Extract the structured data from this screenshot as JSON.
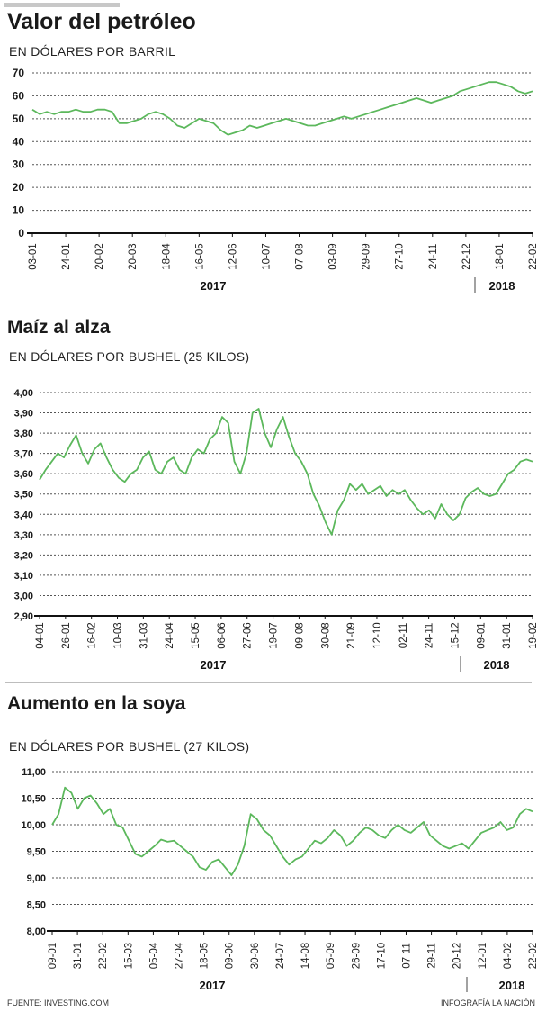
{
  "footer": {
    "source": "FUENTE: INVESTING.COM",
    "credit": "INFOGRAFÍA LA NACIÓN"
  },
  "accent_color": "#5cb85c",
  "chart_data": [
    {
      "type": "line",
      "title": "Valor del petróleo",
      "subtitle": "EN DÓLARES POR BARRIL",
      "ylim": [
        0,
        70
      ],
      "yticks": [
        "0",
        "10",
        "20",
        "30",
        "40",
        "50",
        "60",
        "70"
      ],
      "yticks_values": [
        0,
        10,
        20,
        30,
        40,
        50,
        60,
        70
      ],
      "grid": true,
      "x_labels": [
        "03-01",
        "24-01",
        "20-02",
        "20-03",
        "18-04",
        "16-05",
        "12-06",
        "10-07",
        "07-08",
        "03-09",
        "29-09",
        "27-10",
        "24-11",
        "22-12",
        "18-01",
        "22-02"
      ],
      "year_labels": [
        "2017",
        "2018"
      ],
      "series": [
        {
          "values": [
            54,
            52,
            53,
            52,
            53,
            53,
            54,
            53,
            53,
            54,
            54,
            53,
            48,
            48,
            49,
            50,
            52,
            53,
            52,
            50,
            47,
            46,
            48,
            50,
            49,
            48,
            45,
            43,
            44,
            45,
            47,
            46,
            47,
            48,
            49,
            50,
            49,
            48,
            47,
            47,
            48,
            49,
            50,
            51,
            50,
            51,
            52,
            53,
            54,
            55,
            56,
            57,
            58,
            59,
            58,
            57,
            58,
            59,
            60,
            62,
            63,
            64,
            65,
            66,
            66,
            65,
            64,
            62,
            61,
            62
          ]
        }
      ]
    },
    {
      "type": "line",
      "title": "Maíz al alza",
      "subtitle": "EN DÓLARES POR BUSHEL (25 KILOS)",
      "ylim": [
        2.9,
        4.0
      ],
      "yticks": [
        "2,90",
        "3,00",
        "3,10",
        "3,20",
        "3,30",
        "3,40",
        "3,50",
        "3,60",
        "3,70",
        "3,80",
        "3,90",
        "4,00"
      ],
      "yticks_values": [
        2.9,
        3.0,
        3.1,
        3.2,
        3.3,
        3.4,
        3.5,
        3.6,
        3.7,
        3.8,
        3.9,
        4.0
      ],
      "grid": true,
      "x_labels": [
        "04-01",
        "26-01",
        "16-02",
        "10-03",
        "31-03",
        "24-04",
        "15-05",
        "06-06",
        "27-06",
        "19-07",
        "09-08",
        "30-08",
        "21-09",
        "12-10",
        "02-11",
        "24-11",
        "15-12",
        "09-01",
        "31-01",
        "19-02"
      ],
      "year_labels": [
        "2017",
        "2018"
      ],
      "series": [
        {
          "values": [
            3.57,
            3.62,
            3.66,
            3.7,
            3.68,
            3.74,
            3.79,
            3.7,
            3.65,
            3.72,
            3.75,
            3.68,
            3.62,
            3.58,
            3.56,
            3.6,
            3.62,
            3.68,
            3.71,
            3.62,
            3.6,
            3.66,
            3.68,
            3.62,
            3.6,
            3.68,
            3.72,
            3.7,
            3.77,
            3.8,
            3.88,
            3.85,
            3.66,
            3.6,
            3.7,
            3.9,
            3.92,
            3.8,
            3.73,
            3.82,
            3.88,
            3.78,
            3.7,
            3.66,
            3.6,
            3.5,
            3.44,
            3.36,
            3.3,
            3.42,
            3.47,
            3.55,
            3.52,
            3.55,
            3.5,
            3.52,
            3.54,
            3.49,
            3.52,
            3.5,
            3.52,
            3.47,
            3.43,
            3.4,
            3.42,
            3.38,
            3.45,
            3.4,
            3.37,
            3.4,
            3.48,
            3.51,
            3.53,
            3.5,
            3.49,
            3.5,
            3.55,
            3.6,
            3.62,
            3.66,
            3.67,
            3.66
          ]
        }
      ]
    },
    {
      "type": "line",
      "title": "Aumento en la soya",
      "subtitle": "EN DÓLARES POR BUSHEL (27 KILOS)",
      "ylim": [
        8.0,
        11.0
      ],
      "yticks": [
        "8,00",
        "8,50",
        "9,00",
        "9,50",
        "10,00",
        "10,50",
        "11,00"
      ],
      "yticks_values": [
        8.0,
        8.5,
        9.0,
        9.5,
        10.0,
        10.5,
        11.0
      ],
      "grid": true,
      "x_labels": [
        "09-01",
        "31-01",
        "22-02",
        "15-03",
        "05-04",
        "27-04",
        "18-05",
        "09-06",
        "30-06",
        "24-07",
        "14-08",
        "05-09",
        "26-09",
        "17-10",
        "07-11",
        "29-11",
        "20-12",
        "12-01",
        "04-02",
        "22-02"
      ],
      "year_labels": [
        "2017",
        "2018"
      ],
      "series": [
        {
          "values": [
            10.0,
            10.2,
            10.7,
            10.6,
            10.3,
            10.5,
            10.55,
            10.4,
            10.2,
            10.3,
            10.0,
            9.95,
            9.7,
            9.45,
            9.4,
            9.5,
            9.6,
            9.72,
            9.68,
            9.7,
            9.6,
            9.5,
            9.4,
            9.2,
            9.15,
            9.3,
            9.35,
            9.2,
            9.05,
            9.25,
            9.6,
            10.2,
            10.1,
            9.9,
            9.8,
            9.6,
            9.4,
            9.25,
            9.35,
            9.4,
            9.55,
            9.7,
            9.65,
            9.75,
            9.9,
            9.8,
            9.6,
            9.7,
            9.85,
            9.95,
            9.9,
            9.8,
            9.75,
            9.9,
            10.0,
            9.9,
            9.85,
            9.95,
            10.05,
            9.8,
            9.7,
            9.6,
            9.55,
            9.6,
            9.65,
            9.55,
            9.7,
            9.85,
            9.9,
            9.95,
            10.05,
            9.9,
            9.95,
            10.2,
            10.3,
            10.25
          ]
        }
      ]
    }
  ]
}
